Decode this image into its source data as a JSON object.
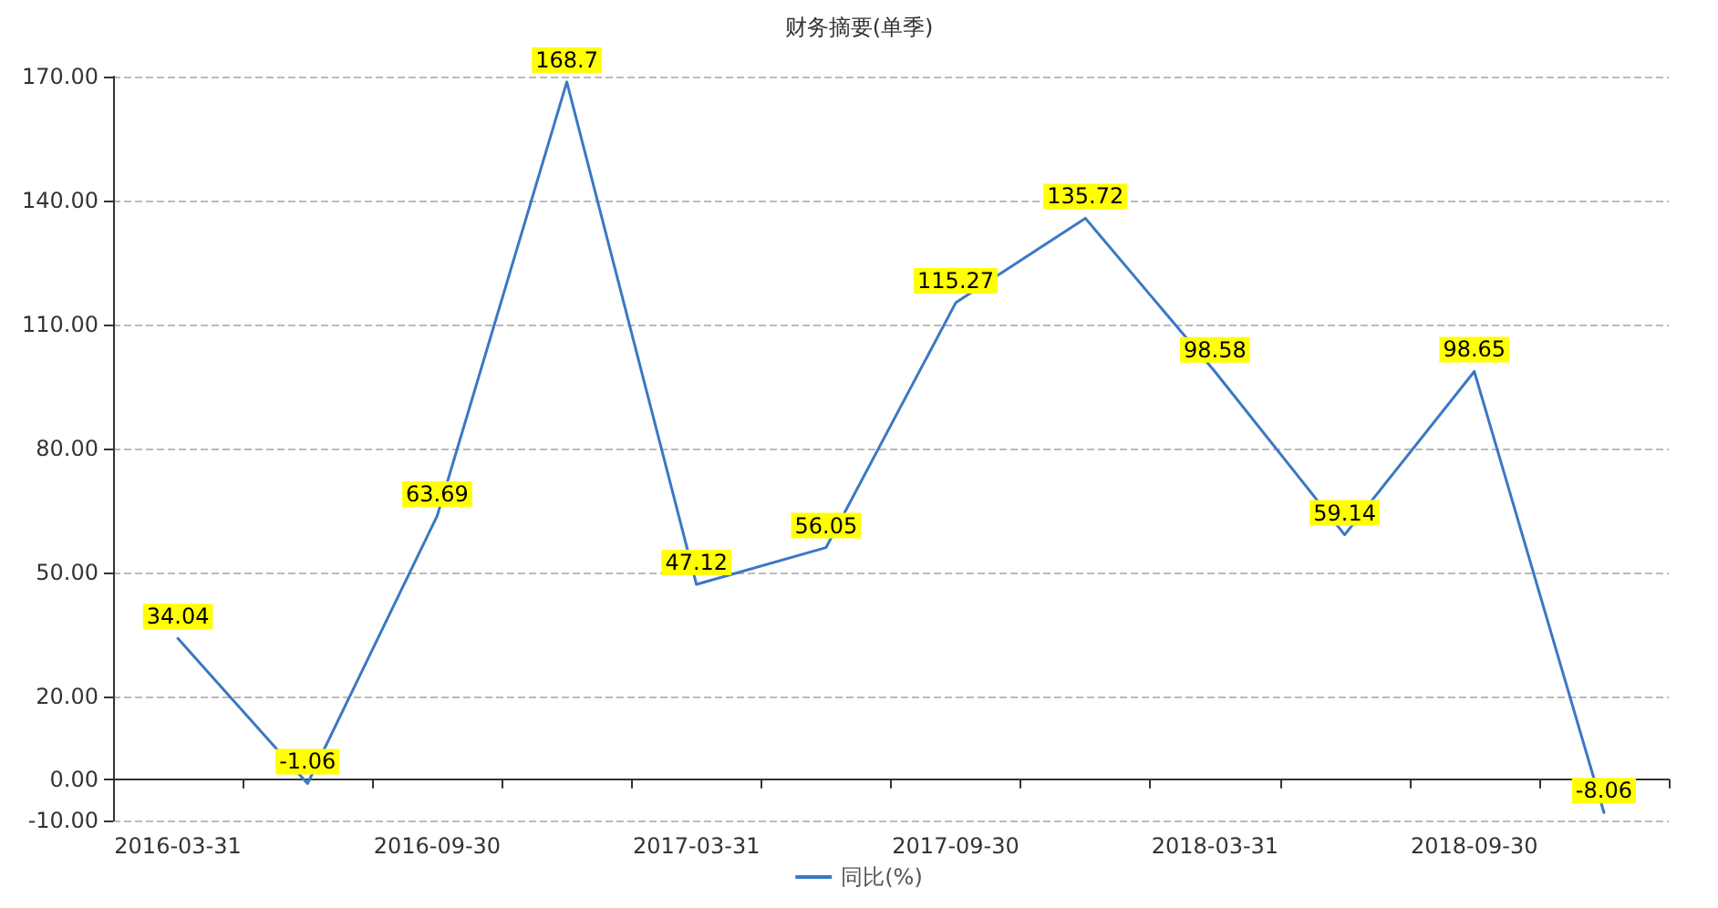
{
  "chart_data": {
    "type": "line",
    "title": "财务摘要(单季)",
    "categories": [
      "2016-03-31",
      null,
      "2016-09-30",
      null,
      "2017-03-31",
      null,
      "2017-09-30",
      null,
      "2018-03-31",
      null,
      "2018-09-30",
      null
    ],
    "series": [
      {
        "name": "同比(%)",
        "color": "#3a78c3",
        "values": [
          34.04,
          -1.06,
          63.69,
          168.7,
          47.12,
          56.05,
          115.27,
          135.72,
          98.58,
          59.14,
          98.65,
          -8.06
        ]
      }
    ],
    "ylim": [
      -10,
      170
    ],
    "yticks": [
      {
        "value": -10,
        "label": "-10.00"
      },
      {
        "value": 0,
        "label": "0.00"
      },
      {
        "value": 20,
        "label": "20.00"
      },
      {
        "value": 50,
        "label": "50.00"
      },
      {
        "value": 80,
        "label": "80.00"
      },
      {
        "value": 110,
        "label": "110.00"
      },
      {
        "value": 140,
        "label": "140.00"
      },
      {
        "value": 170,
        "label": "170.00"
      }
    ],
    "grid": "y",
    "legend": "bottom",
    "data_labels": true,
    "marker": "none",
    "line_style": "solid"
  }
}
